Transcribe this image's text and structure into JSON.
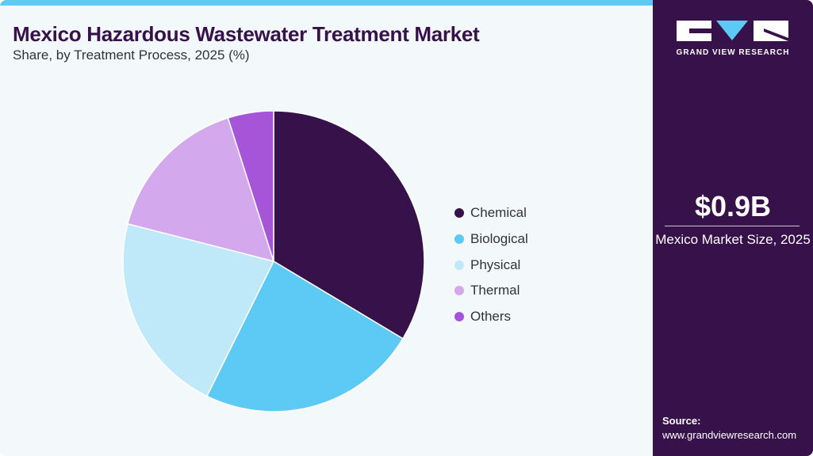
{
  "header": {
    "title": "Mexico Hazardous Wastewater Treatment Market",
    "subtitle": "Share, by Treatment Process, 2025 (%)"
  },
  "colors": {
    "accent_bar": "#5dc9f5",
    "side_panel": "#37114a",
    "title": "#37114a"
  },
  "chart_data": {
    "type": "pie",
    "title": "Mexico Hazardous Wastewater Treatment Market",
    "subtitle": "Share, by Treatment Process, 2025 (%)",
    "categories": [
      "Chemical",
      "Biological",
      "Physical",
      "Thermal",
      "Others"
    ],
    "values": [
      33.6,
      23.7,
      21.7,
      16.1,
      4.9
    ],
    "colors": [
      "#37114a",
      "#5dc9f5",
      "#bfe9f9",
      "#d4a8ec",
      "#a655d8"
    ],
    "start_angle": "12 o'clock, clockwise",
    "legend_position": "right"
  },
  "legend": {
    "items": [
      {
        "label": "Chemical",
        "color": "#37114a"
      },
      {
        "label": "Biological",
        "color": "#5dc9f5"
      },
      {
        "label": "Physical",
        "color": "#bfe9f9"
      },
      {
        "label": "Thermal",
        "color": "#d4a8ec"
      },
      {
        "label": "Others",
        "color": "#a655d8"
      }
    ]
  },
  "side_panel": {
    "brand": "GRAND VIEW RESEARCH",
    "market_size_value": "$0.9B",
    "market_size_label": "Mexico Market Size, 2025",
    "source_label": "Source:",
    "source_url": "www.grandviewresearch.com"
  }
}
